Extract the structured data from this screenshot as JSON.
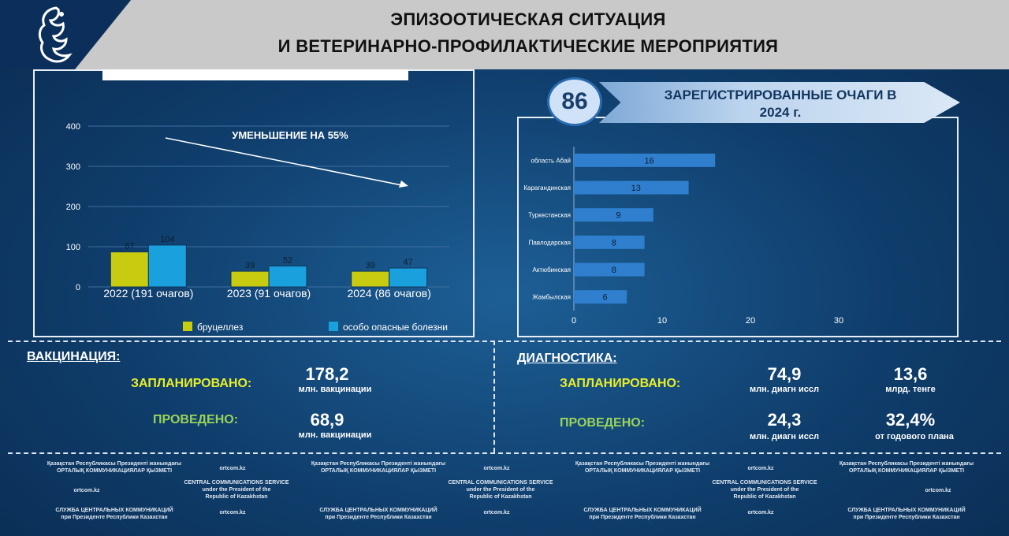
{
  "header": {
    "title_line1": "ЭПИЗООТИЧЕСКАЯ СИТУАЦИЯ",
    "title_line2": "И ВЕТЕРИНАРНО-ПРОФИЛАКТИЧЕСКИЕ МЕРОПРИЯТИЯ"
  },
  "left_chart": {
    "annotation": "УМЕНЬШЕНИЕ НА 55%"
  },
  "right_header": {
    "badge": "86",
    "banner_line1": "ЗАРЕГИСТРИРОВАННЫЕ ОЧАГИ В",
    "banner_line2": "2024 г."
  },
  "chart_data": [
    {
      "type": "bar",
      "categories": [
        "2022 (191 очагов)",
        "2023 (91 очагов)",
        "2024 (86 очагов)"
      ],
      "series": [
        {
          "name": "особо опасные болезни",
          "values": [
            104,
            52,
            47
          ],
          "color": "#1aa0dc"
        },
        {
          "name": "бруцеллез",
          "values": [
            87,
            39,
            39
          ],
          "color": "#c8cc10"
        }
      ],
      "yticks": [
        "0",
        "100",
        "200",
        "300",
        "400"
      ],
      "ylim": [
        0,
        400
      ],
      "annotation": "УМЕНЬШЕНИЕ НА 55%",
      "legend": "bottom"
    },
    {
      "type": "bar",
      "orientation": "horizontal",
      "categories": [
        "область Абай",
        "Карагандинская",
        "Туркестанская",
        "Павлодарская",
        "Актюбинская",
        "Жамбылская"
      ],
      "values": [
        16,
        13,
        9,
        8,
        8,
        6
      ],
      "xticks": [
        "0",
        "10",
        "20",
        "30"
      ],
      "xlim": [
        0,
        30
      ],
      "color": "#2f7fce"
    }
  ],
  "vaccination": {
    "heading": "ВАКЦИНАЦИЯ:",
    "planned_label": "ЗАПЛАНИРОВАНО:",
    "planned_value": "178,2",
    "planned_unit": "млн. вакцинации",
    "done_label": "ПРОВЕДЕНО:",
    "done_value": "68,9",
    "done_unit": "млн. вакцинации"
  },
  "diagnostics": {
    "heading": "ДИАГНОСТИКА:",
    "planned_label": "ЗАПЛАНИРОВАНО:",
    "planned_value1": "74,9",
    "planned_unit1": "млн. диагн иссл",
    "planned_value2": "13,6",
    "planned_unit2": "млрд. тенге",
    "done_label": "ПРОВЕДЕНО:",
    "done_value1": "24,3",
    "done_unit1": "млн. диагн иссл",
    "done_value2": "32,4%",
    "done_unit2": "от годового плана"
  },
  "footer": {
    "kz_line1": "Қазақстан Республикасы Президенті жанындағы",
    "kz_line2": "ОРТАЛЫҚ КОММУНИКАЦИЯЛАР ҚЫЗМЕТІ",
    "site": "ortcom.kz",
    "en_line1": "CENTRAL COMMUNICATIONS SERVICE",
    "en_line2": "under the President of the",
    "en_line3": "Republic of Kazakhstan",
    "ru_line1": "СЛУЖБА ЦЕНТРАЛЬНЫХ КОММУНИКАЦИЙ",
    "ru_line2": "при Президенте Республики Казахстан"
  }
}
